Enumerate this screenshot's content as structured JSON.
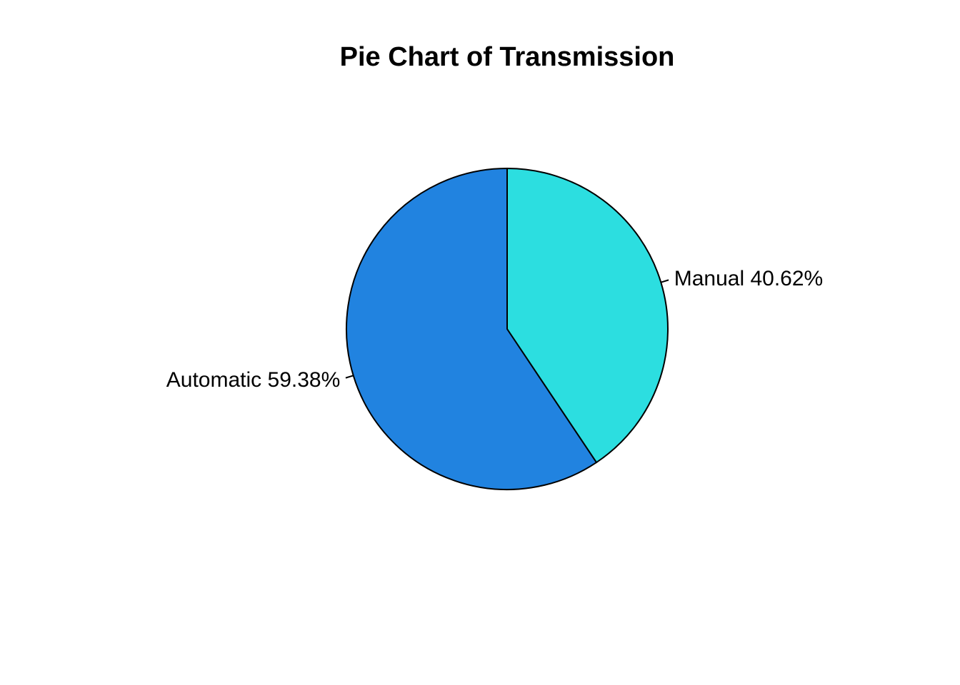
{
  "chart_data": {
    "type": "pie",
    "title": "Pie Chart of Transmission",
    "direction": "counterclockwise",
    "start": "top",
    "slices": [
      {
        "label": "Automatic",
        "value": 59.38,
        "display": "Automatic 59.38%",
        "color": "#2183e0"
      },
      {
        "label": "Manual",
        "value": 40.62,
        "display": "Manual 40.62%",
        "color": "#2cdee0"
      }
    ]
  }
}
